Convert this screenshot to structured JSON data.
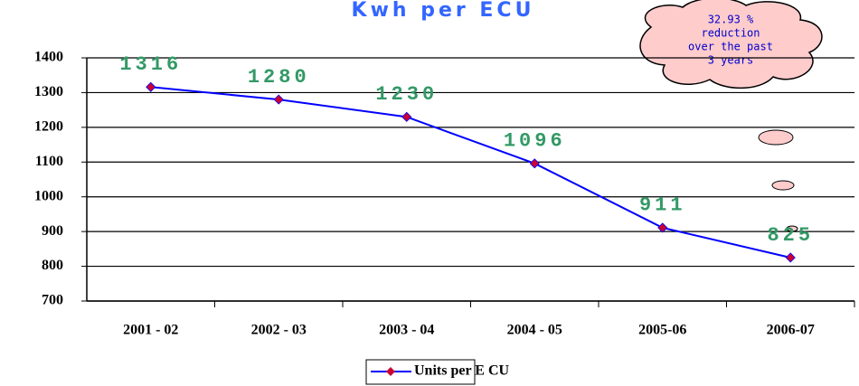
{
  "chart_data": {
    "type": "line",
    "title": "Kwh per ECU",
    "categories": [
      "2001 - 02",
      "2002 - 03",
      "2003 - 04",
      "2004 - 05",
      "2005-06",
      "2006-07"
    ],
    "series": [
      {
        "name": "Units per E CU",
        "color": "#0000ff",
        "marker_color": "#cc0033",
        "label_color": "#339966",
        "values": [
          1316,
          1280,
          1230,
          1096,
          911,
          825
        ]
      }
    ],
    "ylim": [
      700,
      1400
    ],
    "yticks": [
      700,
      800,
      900,
      1000,
      1100,
      1200,
      1300,
      1400
    ],
    "grid": true,
    "legend": "bottom",
    "annotation": [
      "32.93 %",
      "reduction",
      "over the past",
      "3 years"
    ]
  }
}
